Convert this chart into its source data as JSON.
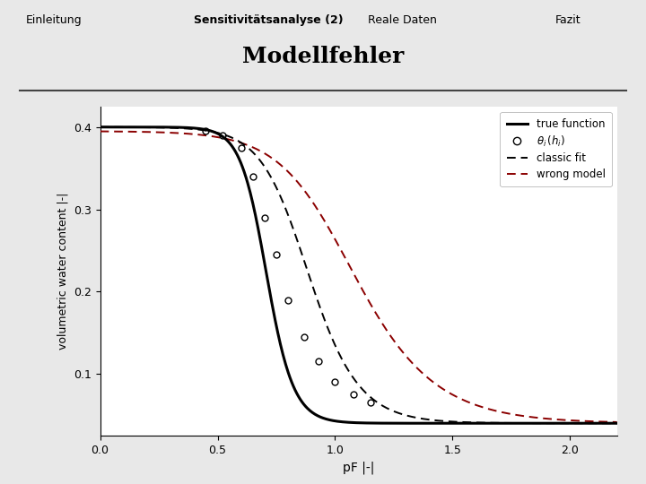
{
  "title": "Modellfehler",
  "nav_items": [
    "Einleitung",
    "Sensitivitätsanalyse (2)",
    "Reale Daten",
    "Fazit"
  ],
  "nav_bold": 1,
  "xlabel": "pF |-|",
  "ylabel": "volumetric water content |-|",
  "xlim": [
    0.0,
    2.2
  ],
  "ylim": [
    0.025,
    0.425
  ],
  "yticks": [
    0.1,
    0.2,
    0.3,
    0.4
  ],
  "ytick_labels": [
    "0.1",
    "0.2",
    "0.3",
    "0.4"
  ],
  "xticks": [
    0.0,
    0.5,
    1.0,
    1.5,
    2.0
  ],
  "bg_color": "#e8e8e8",
  "plot_bg": "#ffffff",
  "true_color": "#000000",
  "classic_color": "#000000",
  "wrong_color": "#8b0000",
  "data_color": "#000000",
  "theta_r": 0.04,
  "theta_s_true": 0.4,
  "alpha_true": 0.2,
  "n_true": 8.0,
  "theta_s_classic": 0.4,
  "alpha_classic": 0.14,
  "n_classic": 4.5,
  "theta_s_wrong": 0.395,
  "alpha_wrong": 0.1,
  "n_wrong": 3.0,
  "data_points_x": [
    0.45,
    0.52,
    0.6,
    0.65,
    0.7,
    0.75,
    0.8,
    0.87,
    0.93,
    1.0,
    1.08,
    1.15
  ],
  "data_points_y": [
    0.395,
    0.39,
    0.375,
    0.34,
    0.29,
    0.245,
    0.19,
    0.145,
    0.115,
    0.09,
    0.075,
    0.065
  ]
}
